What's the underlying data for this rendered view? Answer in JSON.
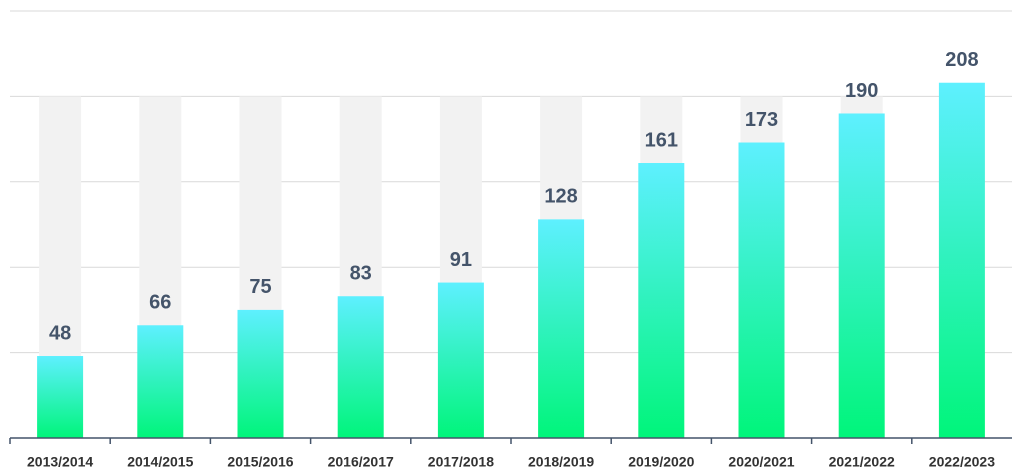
{
  "chart_data": {
    "type": "bar",
    "categories": [
      "2013/2014",
      "2014/2015",
      "2015/2016",
      "2016/2017",
      "2017/2018",
      "2018/2019",
      "2019/2020",
      "2020/2021",
      "2021/2022",
      "2022/2023"
    ],
    "values": [
      48,
      66,
      75,
      83,
      91,
      128,
      161,
      173,
      190,
      208
    ],
    "color_top": "#5ef0ff",
    "color_bottom": "#00f57a",
    "background_bars": {
      "value": 200,
      "color": "#f2f2f2"
    },
    "ylim": [
      0,
      250
    ],
    "yticks": [
      0,
      50,
      100,
      150,
      200,
      250
    ],
    "grid": true
  }
}
